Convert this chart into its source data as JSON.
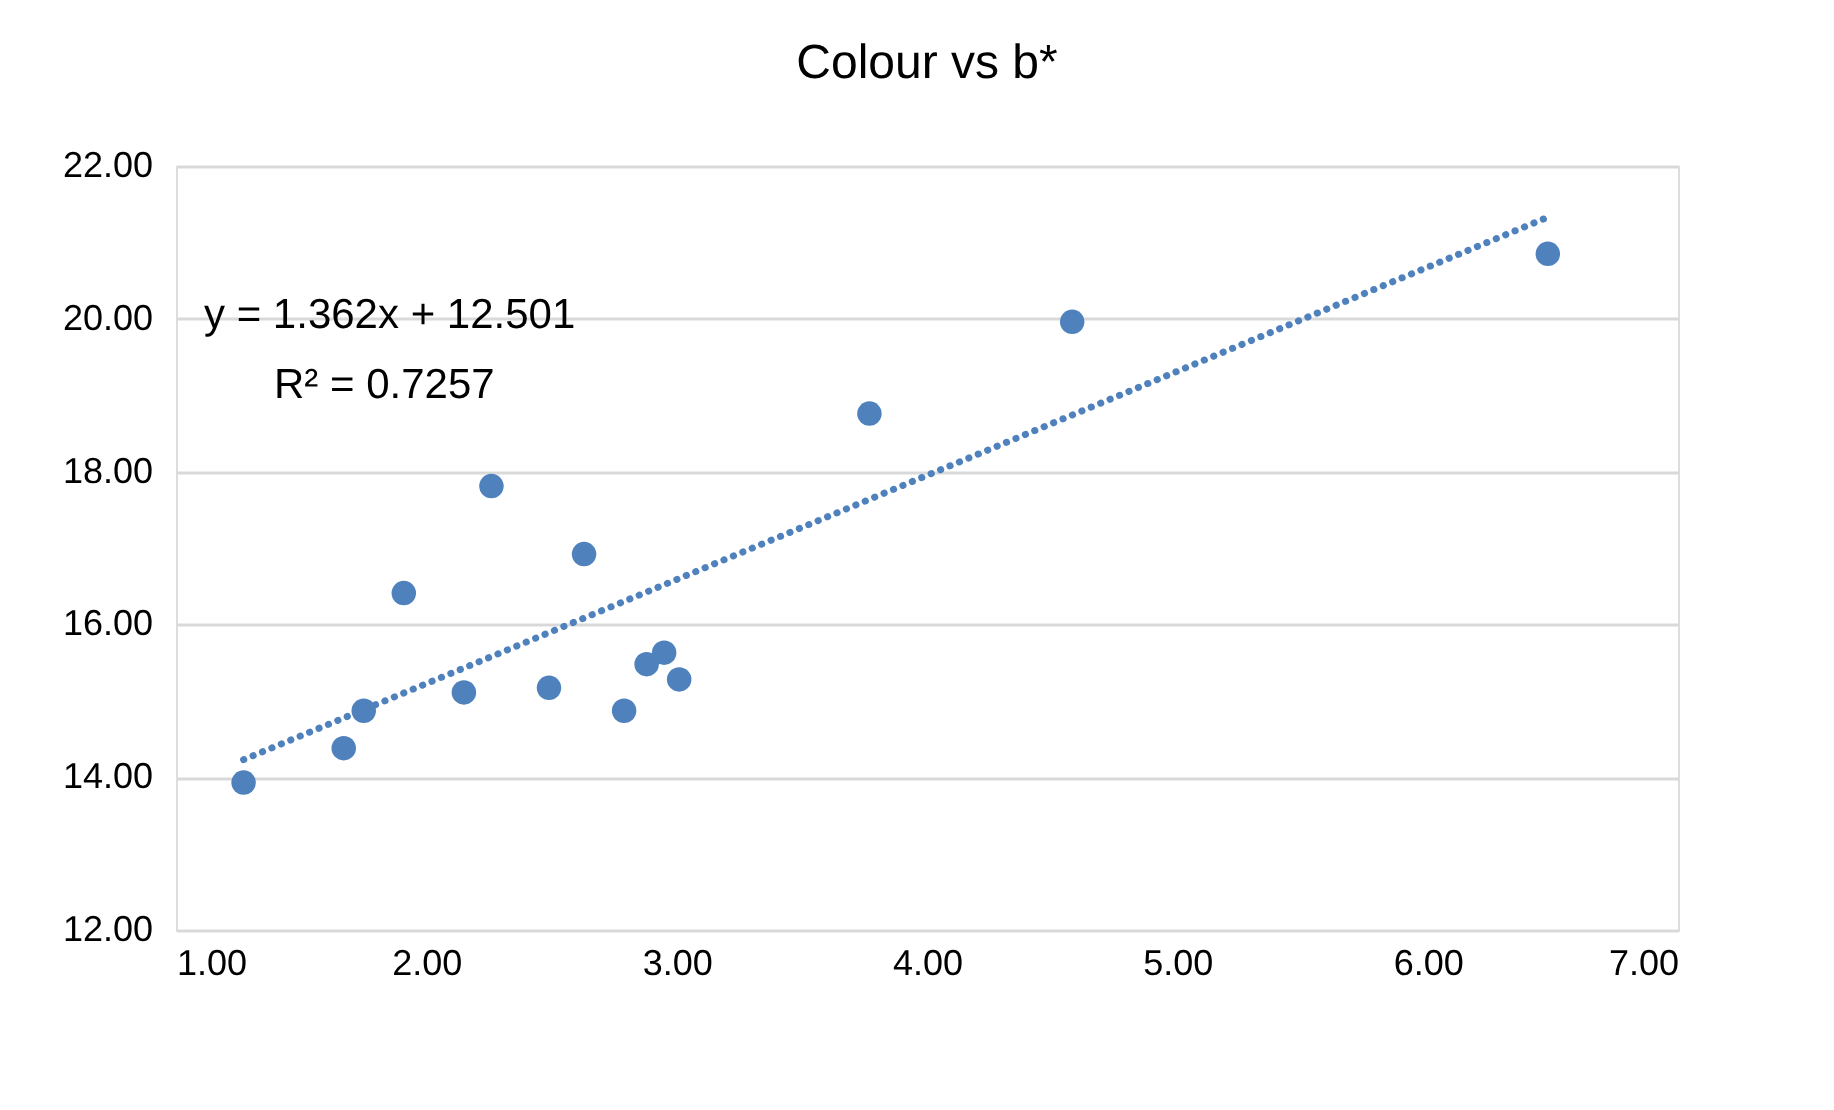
{
  "chart_data": {
    "type": "scatter",
    "title": "Colour vs  b*",
    "series": [
      {
        "color": "#4f81bd",
        "marker": "circle",
        "x": [
          1.27,
          1.67,
          1.75,
          1.91,
          2.15,
          2.26,
          2.49,
          2.63,
          2.79,
          2.88,
          2.95,
          3.01,
          3.77,
          4.58,
          6.48
        ],
        "values": [
          13.93,
          14.38,
          14.87,
          16.41,
          15.11,
          17.81,
          15.17,
          16.92,
          14.87,
          15.48,
          15.63,
          15.28,
          18.76,
          19.96,
          20.85
        ]
      },
      {
        "type": "line",
        "color": "#4f81bd",
        "line_style": "dotted",
        "x": [
          1.27,
          6.48
        ],
        "values": [
          14.23,
          21.33
        ]
      }
    ],
    "annotations": [
      "y = 1.362x + 12.501",
      "R² = 0.7257"
    ],
    "xlim": [
      1.0,
      7.0
    ],
    "xticks": [
      {
        "value": 1,
        "label": "1.00"
      },
      {
        "value": 2,
        "label": "2.00"
      },
      {
        "value": 3,
        "label": "3.00"
      },
      {
        "value": 4,
        "label": "4.00"
      },
      {
        "value": 5,
        "label": "5.00"
      },
      {
        "value": 6,
        "label": "6.00"
      },
      {
        "value": 7,
        "label": "7.00"
      }
    ],
    "ylim": [
      12.0,
      22.0
    ],
    "yticks": [
      {
        "value": 12,
        "label": "12.00"
      },
      {
        "value": 14,
        "label": "14.00"
      },
      {
        "value": 16,
        "label": "16.00"
      },
      {
        "value": 18,
        "label": "18.00"
      },
      {
        "value": 20,
        "label": "20.00"
      },
      {
        "value": 22,
        "label": "22.00"
      }
    ],
    "grid": "y"
  }
}
